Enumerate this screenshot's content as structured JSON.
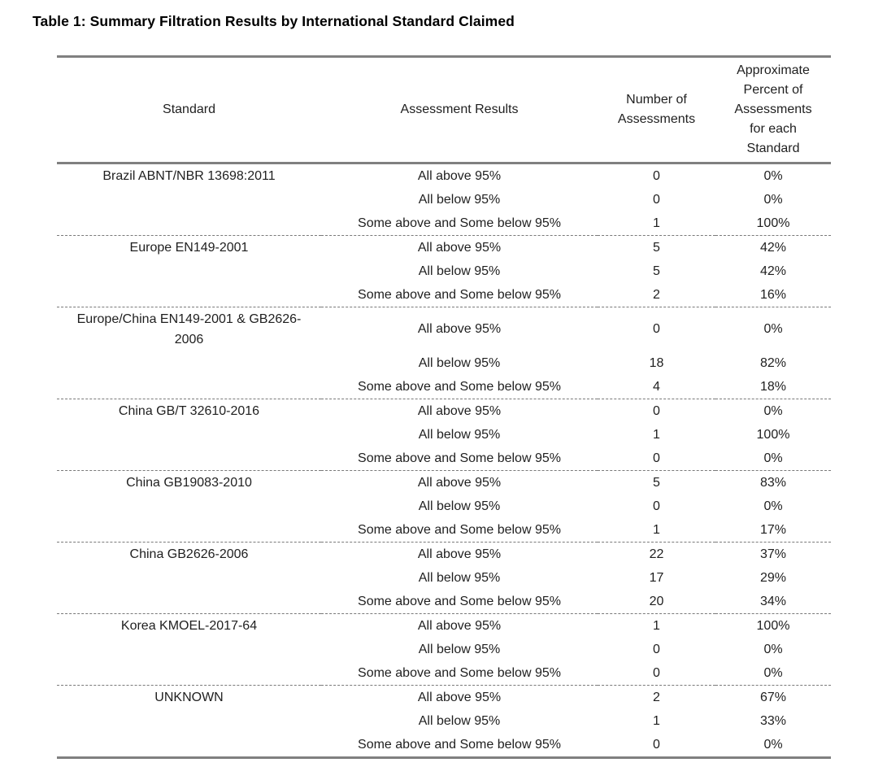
{
  "title": "Table 1: Summary Filtration Results by International Standard Claimed",
  "colors": {
    "rule_solid": "#808080",
    "rule_dashed": "#7a7a7a",
    "text": "#1f1f1f",
    "background": "#ffffff"
  },
  "table": {
    "columns": [
      {
        "label": "Standard"
      },
      {
        "label": "Assessment Results"
      },
      {
        "label": "Number of Assessments"
      },
      {
        "label": "Approximate Percent of Assessments for each Standard"
      }
    ],
    "groups": [
      {
        "standard": "Brazil ABNT/NBR 13698:2011",
        "rows": [
          {
            "result": "All above 95%",
            "count": "0",
            "percent": "0%"
          },
          {
            "result": "All below 95%",
            "count": "0",
            "percent": "0%"
          },
          {
            "result": "Some above and Some below 95%",
            "count": "1",
            "percent": "100%"
          }
        ]
      },
      {
        "standard": "Europe EN149-2001",
        "rows": [
          {
            "result": "All above 95%",
            "count": "5",
            "percent": "42%"
          },
          {
            "result": "All below 95%",
            "count": "5",
            "percent": "42%"
          },
          {
            "result": "Some above and Some below 95%",
            "count": "2",
            "percent": "16%"
          }
        ]
      },
      {
        "standard": "Europe/China EN149-2001 & GB2626-2006",
        "rows": [
          {
            "result": "All above 95%",
            "count": "0",
            "percent": "0%"
          },
          {
            "result": "All below 95%",
            "count": "18",
            "percent": "82%"
          },
          {
            "result": "Some above and Some below 95%",
            "count": "4",
            "percent": "18%"
          }
        ]
      },
      {
        "standard": "China GB/T 32610-2016",
        "rows": [
          {
            "result": "All above 95%",
            "count": "0",
            "percent": "0%"
          },
          {
            "result": "All below 95%",
            "count": "1",
            "percent": "100%"
          },
          {
            "result": "Some above and Some below 95%",
            "count": "0",
            "percent": "0%"
          }
        ]
      },
      {
        "standard": "China GB19083-2010",
        "rows": [
          {
            "result": "All above 95%",
            "count": "5",
            "percent": "83%"
          },
          {
            "result": "All below 95%",
            "count": "0",
            "percent": "0%"
          },
          {
            "result": "Some above and Some below 95%",
            "count": "1",
            "percent": "17%"
          }
        ]
      },
      {
        "standard": "China GB2626-2006",
        "rows": [
          {
            "result": "All above 95%",
            "count": "22",
            "percent": "37%"
          },
          {
            "result": "All below 95%",
            "count": "17",
            "percent": "29%"
          },
          {
            "result": "Some above and Some below 95%",
            "count": "20",
            "percent": "34%"
          }
        ]
      },
      {
        "standard": "Korea KMOEL-2017-64",
        "rows": [
          {
            "result": "All above 95%",
            "count": "1",
            "percent": "100%"
          },
          {
            "result": "All below 95%",
            "count": "0",
            "percent": "0%"
          },
          {
            "result": "Some above and Some below 95%",
            "count": "0",
            "percent": "0%"
          }
        ]
      },
      {
        "standard": "UNKNOWN",
        "rows": [
          {
            "result": "All above 95%",
            "count": "2",
            "percent": "67%"
          },
          {
            "result": "All below 95%",
            "count": "1",
            "percent": "33%"
          },
          {
            "result": "Some above and Some below 95%",
            "count": "0",
            "percent": "0%"
          }
        ]
      }
    ]
  }
}
